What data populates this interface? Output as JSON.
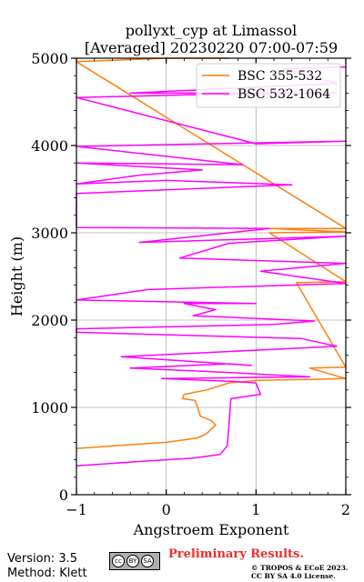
{
  "chart_data": {
    "type": "line",
    "title_line1": "pollyxt_cyp at Limassol",
    "title_line2": "[Averaged] 20230220 07:00-07:59",
    "xlabel": "Angstroem Exponent",
    "ylabel": "Height (m)",
    "xlim": [
      -1,
      2
    ],
    "ylim": [
      0,
      5000
    ],
    "xticks": [
      -1,
      0,
      1,
      2
    ],
    "yticks": [
      0,
      1000,
      2000,
      3000,
      4000,
      5000
    ],
    "grid": true,
    "legend_position": "top-right",
    "series": [
      {
        "name": "BSC 355-532",
        "color": "#ff7f0e",
        "points": [
          [
            -1.0,
            530
          ],
          [
            0.0,
            600
          ],
          [
            0.35,
            650
          ],
          [
            0.45,
            700
          ],
          [
            0.55,
            800
          ],
          [
            0.5,
            850
          ],
          [
            0.38,
            900
          ],
          [
            0.35,
            1000
          ],
          [
            0.32,
            1080
          ],
          [
            0.18,
            1100
          ],
          [
            0.2,
            1150
          ],
          [
            0.45,
            1200
          ],
          [
            0.7,
            1280
          ],
          [
            1.0,
            1310
          ],
          [
            1.6,
            1320
          ],
          [
            2.0,
            1330
          ],
          [
            1.6,
            1450
          ],
          [
            2.0,
            1460
          ],
          [
            1.45,
            2430
          ],
          [
            2.0,
            2440
          ],
          [
            1.15,
            3000
          ],
          [
            2.0,
            3010
          ],
          [
            1.15,
            3050
          ],
          [
            2.0,
            3050
          ],
          [
            -1.0,
            4960
          ],
          [
            0.0,
            5000
          ],
          [
            0.7,
            5000
          ]
        ]
      },
      {
        "name": "BSC 532-1064",
        "color": "#ff00ff",
        "points": [
          [
            -1.0,
            330
          ],
          [
            -0.3,
            380
          ],
          [
            0.3,
            420
          ],
          [
            0.6,
            460
          ],
          [
            0.68,
            560
          ],
          [
            0.7,
            800
          ],
          [
            0.72,
            1100
          ],
          [
            1.05,
            1150
          ],
          [
            1.0,
            1280
          ],
          [
            0.7,
            1300
          ],
          [
            -0.05,
            1330
          ],
          [
            1.6,
            1350
          ],
          [
            0.7,
            1400
          ],
          [
            -0.4,
            1450
          ],
          [
            0.7,
            1500
          ],
          [
            0.95,
            1480
          ],
          [
            -0.5,
            1580
          ],
          [
            1.9,
            1700
          ],
          [
            1.5,
            1790
          ],
          [
            -1.0,
            1860
          ],
          [
            -1.0,
            1900
          ],
          [
            1.2,
            1950
          ],
          [
            1.65,
            1990
          ],
          [
            0.3,
            2050
          ],
          [
            0.55,
            2120
          ],
          [
            0.2,
            2190
          ],
          [
            1.0,
            2190
          ],
          [
            -1.0,
            2230
          ],
          [
            -0.2,
            2350
          ],
          [
            2.0,
            2420
          ],
          [
            1.05,
            2560
          ],
          [
            2.0,
            2650
          ],
          [
            0.15,
            2710
          ],
          [
            0.7,
            2880
          ],
          [
            2.0,
            2960
          ],
          [
            -0.3,
            2890
          ],
          [
            1.15,
            3050
          ],
          [
            -1.0,
            3060
          ],
          [
            -1.0,
            3420
          ],
          [
            -1.0,
            3450
          ],
          [
            1.4,
            3550
          ],
          [
            0.0,
            3600
          ],
          [
            -1.0,
            3560
          ],
          [
            -0.3,
            3660
          ],
          [
            0.4,
            3720
          ],
          [
            -1.0,
            3800
          ],
          [
            0.85,
            3780
          ],
          [
            -1.0,
            3990
          ],
          [
            2.0,
            4050
          ],
          [
            1.0,
            4020
          ],
          [
            -1.0,
            4550
          ],
          [
            0.25,
            4580
          ],
          [
            1.9,
            4600
          ],
          [
            -0.4,
            4600
          ],
          [
            1.9,
            4710
          ],
          [
            1.3,
            4880
          ],
          [
            2.0,
            4900
          ]
        ]
      }
    ]
  },
  "footer": {
    "version": "Version: 3.5",
    "method": "Method: Klett",
    "preliminary": "Preliminary Results.",
    "copyright_line1": "© TROPOS & ECoE 2023.",
    "copyright_line2": "CC BY SA 4.0 License."
  },
  "badge": {
    "cc": "cc",
    "by": "BY",
    "sa": "SA"
  }
}
